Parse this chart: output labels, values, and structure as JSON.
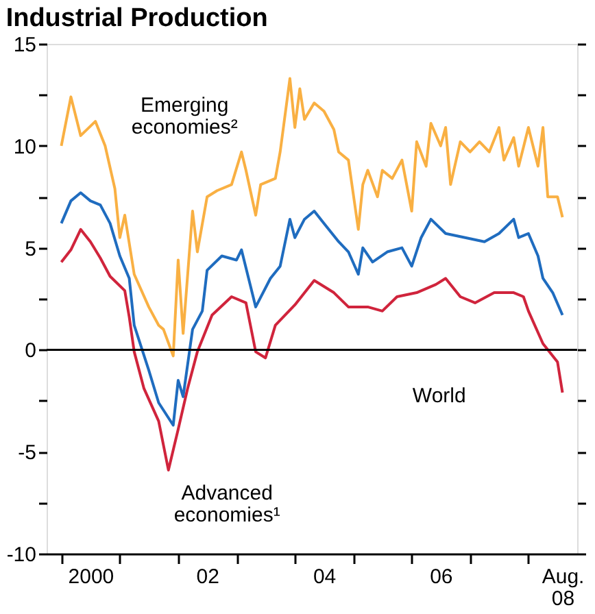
{
  "chart_data": {
    "type": "line",
    "title": "Industrial Production",
    "xlim": [
      "1999-10",
      "2008-11"
    ],
    "ylim": [
      -10,
      15
    ],
    "xticks": [
      {
        "value": "2000-01",
        "label": null
      },
      {
        "value": "2001-01",
        "label": null
      },
      {
        "value": "2002-01",
        "label": null
      },
      {
        "value": "2003-01",
        "label": null
      },
      {
        "value": "2004-01",
        "label": null
      },
      {
        "value": "2005-01",
        "label": null
      },
      {
        "value": "2006-01",
        "label": null
      },
      {
        "value": "2007-01",
        "label": null
      },
      {
        "value": "2008-01",
        "label": null
      },
      {
        "value": "2000-07",
        "label": "2000"
      },
      {
        "value": "2002-07",
        "label": "02"
      },
      {
        "value": "2004-07",
        "label": "04"
      },
      {
        "value": "2006-07",
        "label": "06"
      },
      {
        "value": "2008-08",
        "label": "Aug. 08"
      }
    ],
    "yticks": [
      -10,
      {
        "value": -7.5,
        "label": null
      },
      -5,
      {
        "value": -2.5,
        "label": null
      },
      0,
      {
        "value": 2.5,
        "label": null
      },
      5,
      {
        "value": 7.5,
        "label": null
      },
      10,
      {
        "value": 12.5,
        "label": null
      },
      15
    ],
    "grid": false,
    "legend": false,
    "marker": "none",
    "line_style": "solid",
    "series": [
      {
        "color": "#f9b043",
        "x": [
          "2000-01",
          "2000-03",
          "2000-05",
          "2000-08",
          "2000-10",
          "2000-12",
          "2001-01",
          "2001-02",
          "2001-04",
          "2001-07",
          "2001-09",
          "2001-10",
          "2001-12",
          "2002-01",
          "2002-02",
          "2002-04",
          "2002-05",
          "2002-07",
          "2002-09",
          "2002-12",
          "2003-02",
          "2003-03",
          "2003-05",
          "2003-06",
          "2003-09",
          "2003-10",
          "2003-12",
          "2004-01",
          "2004-02",
          "2004-03",
          "2004-05",
          "2004-07",
          "2004-09",
          "2004-10",
          "2004-12",
          "2005-02",
          "2005-03",
          "2005-04",
          "2005-06",
          "2005-07",
          "2005-09",
          "2005-11",
          "2006-01",
          "2006-02",
          "2006-04",
          "2006-05",
          "2006-07",
          "2006-08",
          "2006-09",
          "2006-11",
          "2007-01",
          "2007-03",
          "2007-05",
          "2007-07",
          "2007-08",
          "2007-10",
          "2007-11",
          "2008-01",
          "2008-03",
          "2008-04",
          "2008-05",
          "2008-07",
          "2008-08"
        ],
        "values": [
          10.0,
          12.4,
          10.5,
          11.2,
          10.0,
          7.9,
          5.5,
          6.6,
          3.7,
          2.1,
          1.2,
          1.0,
          -0.3,
          4.4,
          0.8,
          6.8,
          4.8,
          7.5,
          7.8,
          8.1,
          9.7,
          8.8,
          6.6,
          8.1,
          8.4,
          9.7,
          13.3,
          10.9,
          12.8,
          11.3,
          12.1,
          11.7,
          10.8,
          9.7,
          9.3,
          5.9,
          8.1,
          8.8,
          7.5,
          8.8,
          8.4,
          9.3,
          6.8,
          10.2,
          9.0,
          11.1,
          10.0,
          10.9,
          8.1,
          10.2,
          9.7,
          10.2,
          9.7,
          10.9,
          9.3,
          10.4,
          9.0,
          10.9,
          9.0,
          10.9,
          7.5,
          7.5,
          6.5
        ]
      },
      {
        "color": "#1f6cbf",
        "x": [
          "2000-01",
          "2000-03",
          "2000-05",
          "2000-07",
          "2000-09",
          "2000-11",
          "2001-01",
          "2001-03",
          "2001-04",
          "2001-07",
          "2001-09",
          "2001-12",
          "2002-01",
          "2002-02",
          "2002-04",
          "2002-06",
          "2002-07",
          "2002-10",
          "2003-01",
          "2003-02",
          "2003-05",
          "2003-08",
          "2003-10",
          "2003-12",
          "2004-01",
          "2004-03",
          "2004-05",
          "2004-07",
          "2004-10",
          "2004-12",
          "2005-02",
          "2005-03",
          "2005-05",
          "2005-08",
          "2005-11",
          "2006-01",
          "2006-03",
          "2006-05",
          "2006-08",
          "2006-12",
          "2007-04",
          "2007-07",
          "2007-10",
          "2007-11",
          "2008-01",
          "2008-03",
          "2008-04",
          "2008-06",
          "2008-08"
        ],
        "values": [
          6.2,
          7.3,
          7.7,
          7.3,
          7.1,
          6.2,
          4.6,
          3.5,
          1.2,
          -1.0,
          -2.6,
          -3.7,
          -1.5,
          -2.3,
          1.0,
          1.9,
          3.9,
          4.6,
          4.4,
          4.9,
          2.1,
          3.5,
          4.1,
          6.4,
          5.5,
          6.4,
          6.8,
          6.2,
          5.3,
          4.8,
          3.7,
          5.0,
          4.3,
          4.8,
          5.0,
          4.1,
          5.5,
          6.4,
          5.7,
          5.5,
          5.3,
          5.7,
          6.4,
          5.5,
          5.7,
          4.6,
          3.5,
          2.8,
          1.7
        ]
      },
      {
        "color": "#d0243c",
        "x": [
          "2000-01",
          "2000-03",
          "2000-05",
          "2000-07",
          "2000-09",
          "2000-11",
          "2001-02",
          "2001-03",
          "2001-04",
          "2001-06",
          "2001-09",
          "2001-11",
          "2002-01",
          "2002-03",
          "2002-05",
          "2002-08",
          "2002-12",
          "2003-03",
          "2003-05",
          "2003-07",
          "2003-09",
          "2004-01",
          "2004-05",
          "2004-09",
          "2004-12",
          "2005-04",
          "2005-07",
          "2005-10",
          "2006-02",
          "2006-06",
          "2006-08",
          "2006-11",
          "2007-02",
          "2007-06",
          "2007-10",
          "2007-12",
          "2008-01",
          "2008-04",
          "2008-07",
          "2008-08"
        ],
        "values": [
          4.3,
          4.9,
          5.9,
          5.3,
          4.5,
          3.6,
          2.9,
          1.6,
          -0.1,
          -1.9,
          -3.5,
          -5.9,
          -3.9,
          -1.9,
          -0.1,
          1.7,
          2.6,
          2.3,
          -0.1,
          -0.4,
          1.2,
          2.2,
          3.4,
          2.8,
          2.1,
          2.1,
          1.9,
          2.6,
          2.8,
          3.2,
          3.5,
          2.6,
          2.3,
          2.8,
          2.8,
          2.6,
          1.9,
          0.3,
          -0.6,
          -2.1
        ]
      }
    ],
    "ref_lines": [
      {
        "axis": "y",
        "value": 0,
        "color": "#000000"
      }
    ],
    "annotations": [
      "Emerging economies²",
      "World",
      "Advanced economies¹"
    ]
  }
}
